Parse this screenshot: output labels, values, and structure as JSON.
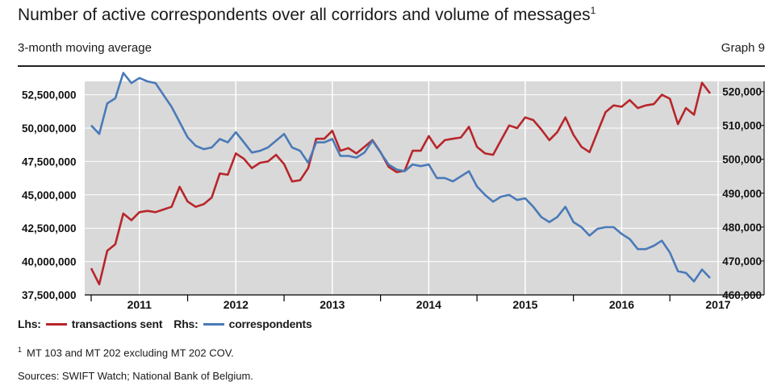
{
  "header": {
    "title": "Number of active correspondents over all corridors and volume of messages",
    "title_sup": "1",
    "subtitle": "3-month moving average",
    "graph_label": "Graph 9"
  },
  "legend": {
    "lhs_label": "Lhs:",
    "lhs_series": "transactions sent",
    "rhs_label": "Rhs:",
    "rhs_series": "correspondents"
  },
  "footnote": {
    "marker": "1",
    "text": "MT 103 and MT 202 excluding MT 202 COV."
  },
  "sources": "Sources: SWIFT Watch; National Bank of Belgium.",
  "colors": {
    "transactions": "#b7262b",
    "correspondents": "#4a7ab8",
    "plot_bg": "#d9d9d9",
    "grid": "#ffffff"
  },
  "chart_data": {
    "type": "line",
    "x_start": "2010-07",
    "x_end": "2017-01",
    "frequency": "monthly",
    "x_tick_labels": [
      "2011",
      "2012",
      "2013",
      "2014",
      "2015",
      "2016",
      "2017"
    ],
    "y_left": {
      "lim": [
        37500000,
        53500000
      ],
      "ticks": [
        37500000,
        40000000,
        42500000,
        45000000,
        47500000,
        50000000,
        52500000
      ],
      "tick_labels": [
        "37,500,000",
        "40,000,000",
        "42,500,000",
        "45,000,000",
        "47,500,000",
        "50,000,000",
        "52,500,000"
      ]
    },
    "y_right": {
      "lim": [
        460000,
        523000
      ],
      "ticks": [
        460000,
        470000,
        480000,
        490000,
        500000,
        510000,
        520000
      ],
      "tick_labels": [
        "460,000",
        "470,000",
        "480,000",
        "490,000",
        "500,000",
        "510,000",
        "520,000"
      ]
    },
    "series": [
      {
        "name": "transactions sent",
        "axis": "left",
        "values": [
          39500000,
          38300000,
          40800000,
          41300000,
          43600000,
          43100000,
          43700000,
          43800000,
          43700000,
          43900000,
          44100000,
          45600000,
          44500000,
          44100000,
          44300000,
          44800000,
          46600000,
          46500000,
          48100000,
          47700000,
          47000000,
          47400000,
          47500000,
          48000000,
          47300000,
          46000000,
          46100000,
          47000000,
          49200000,
          49200000,
          49800000,
          48300000,
          48500000,
          48100000,
          48600000,
          49100000,
          48200000,
          47100000,
          46700000,
          46800000,
          48300000,
          48300000,
          49400000,
          48500000,
          49100000,
          49200000,
          49300000,
          50100000,
          48600000,
          48100000,
          48000000,
          49100000,
          50200000,
          50000000,
          50800000,
          50600000,
          49900000,
          49100000,
          49700000,
          50800000,
          49500000,
          48600000,
          48200000,
          49700000,
          51200000,
          51700000,
          51600000,
          52100000,
          51500000,
          51700000,
          51800000,
          52500000,
          52200000,
          50300000,
          51500000,
          51000000,
          53400000,
          52600000
        ]
      },
      {
        "name": "correspondents",
        "axis": "right",
        "values": [
          510000,
          507500,
          516500,
          518000,
          525500,
          522500,
          524000,
          523000,
          522500,
          519000,
          515500,
          511000,
          506500,
          504000,
          503000,
          503500,
          506000,
          505000,
          508000,
          505000,
          502000,
          502500,
          503500,
          505500,
          507500,
          503500,
          502500,
          499000,
          505000,
          505000,
          506000,
          501000,
          501000,
          500500,
          502000,
          505500,
          502000,
          498500,
          497000,
          496500,
          498500,
          498000,
          498500,
          494500,
          494500,
          493500,
          495000,
          496500,
          492000,
          489500,
          487500,
          489000,
          489500,
          488000,
          488500,
          486000,
          483000,
          481500,
          483000,
          486000,
          481500,
          480000,
          477500,
          479500,
          480000,
          480000,
          478000,
          476500,
          473500,
          473500,
          474500,
          476000,
          472500,
          467000,
          466500,
          464000,
          467500,
          465000
        ]
      }
    ]
  }
}
